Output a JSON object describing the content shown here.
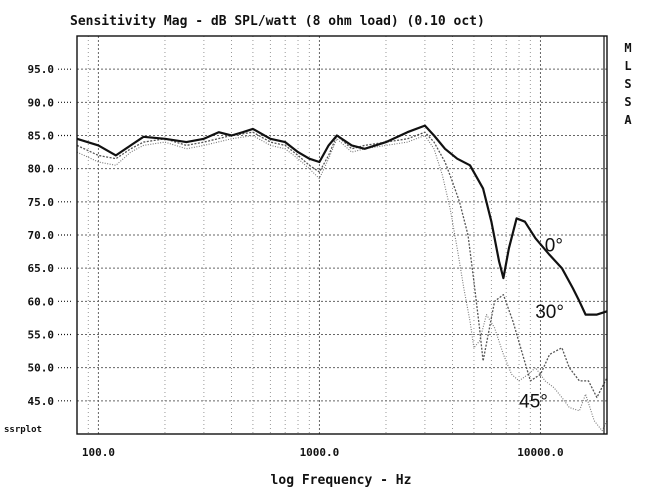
{
  "chart_data": {
    "type": "line",
    "title": "Sensitivity Mag - dB SPL/watt (8 ohm load) (0.10 oct)",
    "xlabel": "log Frequency - Hz",
    "corner_label": "ssrplot",
    "side_label": [
      "M",
      "L",
      "S",
      "S",
      "A"
    ],
    "x_scale": "log",
    "xlim": [
      80,
      20000
    ],
    "ylim": [
      40,
      100
    ],
    "grid": true,
    "x_ticks": [
      {
        "value": 100,
        "label": "100.0"
      },
      {
        "value": 1000,
        "label": "1000.0"
      },
      {
        "value": 10000,
        "label": "10000.0"
      }
    ],
    "y_ticks": [
      {
        "value": 95,
        "label": "95.0"
      },
      {
        "value": 90,
        "label": "90.0"
      },
      {
        "value": 85,
        "label": "85.0"
      },
      {
        "value": 80,
        "label": "80.0"
      },
      {
        "value": 75,
        "label": "75.0"
      },
      {
        "value": 70,
        "label": "70.0"
      },
      {
        "value": 65,
        "label": "65.0"
      },
      {
        "value": 60,
        "label": "60.0"
      },
      {
        "value": 55,
        "label": "55.0"
      },
      {
        "value": 50,
        "label": "50.0"
      },
      {
        "value": 45,
        "label": "45.0"
      }
    ],
    "series": [
      {
        "name": "0°",
        "color": "#111111",
        "style": "solid-bold",
        "points": [
          [
            80,
            84.5
          ],
          [
            100,
            83.5
          ],
          [
            120,
            82
          ],
          [
            140,
            83.5
          ],
          [
            160,
            84.8
          ],
          [
            200,
            84.5
          ],
          [
            250,
            84
          ],
          [
            300,
            84.5
          ],
          [
            350,
            85.5
          ],
          [
            400,
            85
          ],
          [
            450,
            85.5
          ],
          [
            500,
            86
          ],
          [
            600,
            84.5
          ],
          [
            700,
            84
          ],
          [
            800,
            82.5
          ],
          [
            900,
            81.5
          ],
          [
            1000,
            81
          ],
          [
            1100,
            83.5
          ],
          [
            1200,
            85
          ],
          [
            1400,
            83.5
          ],
          [
            1600,
            83
          ],
          [
            2000,
            84
          ],
          [
            2500,
            85.5
          ],
          [
            3000,
            86.5
          ],
          [
            3300,
            85
          ],
          [
            3700,
            83
          ],
          [
            4200,
            81.5
          ],
          [
            4800,
            80.5
          ],
          [
            5500,
            77
          ],
          [
            6000,
            72
          ],
          [
            6500,
            66
          ],
          [
            6800,
            63.5
          ],
          [
            7200,
            68
          ],
          [
            7800,
            72.5
          ],
          [
            8500,
            72
          ],
          [
            9500,
            69.5
          ],
          [
            11000,
            67
          ],
          [
            12500,
            65
          ],
          [
            14000,
            62
          ],
          [
            15000,
            60
          ],
          [
            16000,
            58
          ],
          [
            18000,
            58
          ],
          [
            20000,
            58.5
          ]
        ]
      },
      {
        "name": "30°",
        "color": "#555555",
        "style": "dotted",
        "points": [
          [
            80,
            83.5
          ],
          [
            100,
            82
          ],
          [
            120,
            81.5
          ],
          [
            140,
            83
          ],
          [
            160,
            84
          ],
          [
            200,
            84.5
          ],
          [
            250,
            83.5
          ],
          [
            300,
            84
          ],
          [
            400,
            85
          ],
          [
            500,
            85.5
          ],
          [
            600,
            84
          ],
          [
            700,
            83.5
          ],
          [
            800,
            82
          ],
          [
            900,
            80.5
          ],
          [
            1000,
            79.5
          ],
          [
            1100,
            82
          ],
          [
            1200,
            85
          ],
          [
            1400,
            83
          ],
          [
            1600,
            83.5
          ],
          [
            2000,
            84
          ],
          [
            2500,
            84.5
          ],
          [
            3000,
            85.5
          ],
          [
            3300,
            84
          ],
          [
            3700,
            81
          ],
          [
            4000,
            78
          ],
          [
            4300,
            75
          ],
          [
            4700,
            70
          ],
          [
            5000,
            63
          ],
          [
            5300,
            56
          ],
          [
            5500,
            51
          ],
          [
            5800,
            55
          ],
          [
            6200,
            60
          ],
          [
            6800,
            61
          ],
          [
            7500,
            57
          ],
          [
            8300,
            52
          ],
          [
            9000,
            48
          ],
          [
            10000,
            49
          ],
          [
            11000,
            52
          ],
          [
            12500,
            53
          ],
          [
            13500,
            50
          ],
          [
            15000,
            48
          ],
          [
            16500,
            48
          ],
          [
            18000,
            45.5
          ],
          [
            20000,
            48.5
          ]
        ]
      },
      {
        "name": "45°",
        "color": "#777777",
        "style": "dotted-fine",
        "points": [
          [
            80,
            82.5
          ],
          [
            100,
            81
          ],
          [
            120,
            80.5
          ],
          [
            140,
            82.5
          ],
          [
            160,
            83.5
          ],
          [
            200,
            84
          ],
          [
            250,
            83
          ],
          [
            300,
            83.5
          ],
          [
            400,
            84.5
          ],
          [
            500,
            85
          ],
          [
            600,
            83.5
          ],
          [
            700,
            83
          ],
          [
            800,
            81.5
          ],
          [
            900,
            80
          ],
          [
            1000,
            78.5
          ],
          [
            1100,
            81.5
          ],
          [
            1200,
            84.5
          ],
          [
            1400,
            82.5
          ],
          [
            1600,
            83
          ],
          [
            2000,
            83.5
          ],
          [
            2500,
            84
          ],
          [
            3000,
            85
          ],
          [
            3300,
            83
          ],
          [
            3600,
            79
          ],
          [
            3900,
            74
          ],
          [
            4200,
            68
          ],
          [
            4500,
            62
          ],
          [
            4800,
            57
          ],
          [
            5000,
            53
          ],
          [
            5300,
            54
          ],
          [
            5700,
            58
          ],
          [
            6200,
            56
          ],
          [
            6800,
            52
          ],
          [
            7400,
            49
          ],
          [
            8000,
            48
          ],
          [
            8800,
            49
          ],
          [
            9500,
            50
          ],
          [
            10500,
            48
          ],
          [
            11500,
            47
          ],
          [
            12500,
            45.5
          ],
          [
            13500,
            44
          ],
          [
            15000,
            43.5
          ],
          [
            16000,
            46
          ],
          [
            17500,
            42
          ],
          [
            19000,
            40.5
          ],
          [
            20000,
            42
          ]
        ]
      }
    ],
    "annotations": [
      {
        "text": "0°",
        "x": 11500,
        "y": 67.5
      },
      {
        "text": "30°",
        "x": 11000,
        "y": 57.5
      },
      {
        "text": "45°",
        "x": 9300,
        "y": 44
      }
    ]
  }
}
